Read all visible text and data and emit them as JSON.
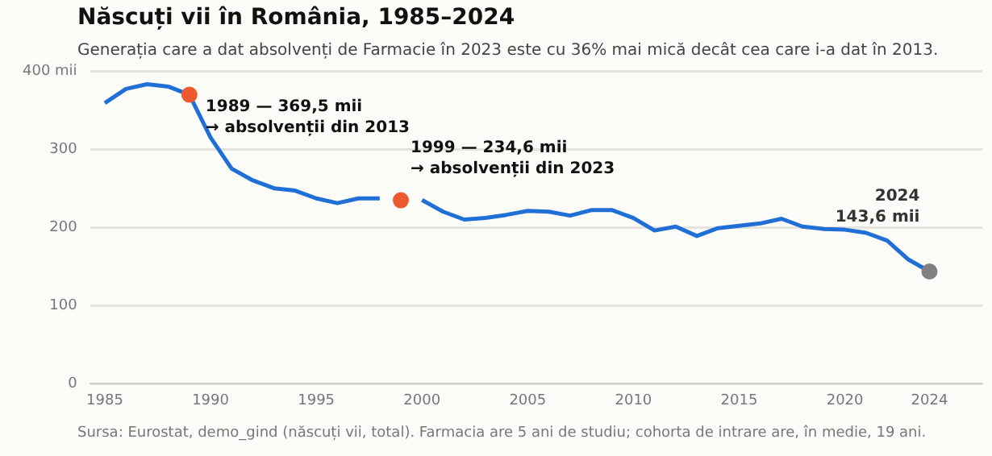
{
  "chart_data": {
    "type": "line",
    "title": "Născuți vii în România, 1985–2024",
    "subtitle": "Generația care a dat absolvenți de Farmacie în 2023 este cu 36% mai mică decât cea care i-a dat în 2013.",
    "x": [
      1985,
      1986,
      1987,
      1988,
      1989,
      1990,
      1991,
      1992,
      1993,
      1994,
      1995,
      1996,
      1997,
      1998,
      1999,
      2000,
      2001,
      2002,
      2003,
      2004,
      2005,
      2006,
      2007,
      2008,
      2009,
      2010,
      2011,
      2012,
      2013,
      2014,
      2015,
      2016,
      2017,
      2018,
      2019,
      2020,
      2021,
      2022,
      2023,
      2024
    ],
    "series": [
      {
        "color": "#1f6fd6",
        "marker": "none",
        "values": [
          359,
          377,
          383,
          380,
          369.5,
          315,
          275,
          260,
          250,
          247,
          237,
          231,
          237,
          237,
          null,
          235,
          220,
          210,
          212,
          216,
          221,
          220,
          215,
          222,
          222,
          212,
          196,
          201,
          189,
          199,
          202,
          205,
          211,
          201,
          198,
          197,
          193,
          183,
          159,
          143.6
        ]
      },
      {
        "type": "scatter",
        "marker": "circle",
        "x": [
          1989,
          1999,
          2024
        ],
        "colors": [
          "#ee5a2f",
          "#ee5a2f",
          "#808080"
        ],
        "values": [
          369.5,
          234.6,
          143.6
        ]
      }
    ],
    "xlim": [
      1984.3,
      2026.5
    ],
    "xticks": [
      1985,
      1990,
      1995,
      2000,
      2005,
      2010,
      2015,
      2020,
      2024
    ],
    "ylim": [
      0,
      400
    ],
    "yticks": [
      0,
      100,
      200,
      300,
      {
        "value": 400,
        "label": "400 mii"
      }
    ],
    "grid": "y",
    "legend": false,
    "annotations": [
      {
        "text": "1989 — 369,5 mii\n→ absolvenții din 2013",
        "x": 1989,
        "y": 369.5
      },
      {
        "text": "1999 — 234,6 mii\n→ absolvenții din 2023",
        "x": 1999,
        "y": 234.6
      },
      {
        "text": "2024\n143,6 mii",
        "x": 2024,
        "y": 143.6
      },
      "Sursa: Eurostat, demo_gind (născuți vii, total). Farmacia are 5 ani de studiu; cohorta de intrare are, în medie, 19 ani."
    ]
  }
}
